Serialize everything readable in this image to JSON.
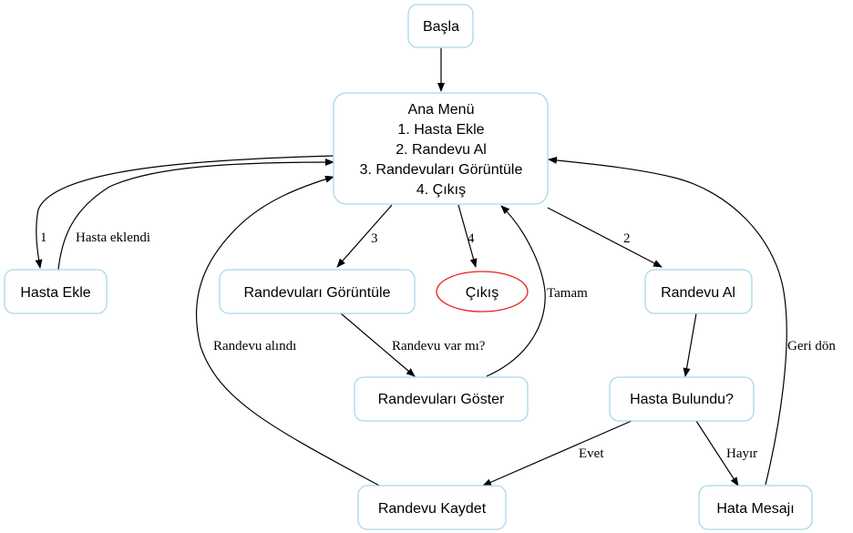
{
  "nodes": {
    "start": "Başla",
    "main_menu": {
      "lines": [
        "Ana Menü",
        "1. Hasta Ekle",
        "2. Randevu Al",
        "3. Randevuları Görüntüle",
        "4. Çıkış"
      ]
    },
    "add_patient": "Hasta Ekle",
    "view_appointments": "Randevuları Görüntüle",
    "exit": "Çıkış",
    "book_appointment": "Randevu Al",
    "show_appointments": "Randevuları Göster",
    "patient_found": "Hasta Bulundu?",
    "save_appointment": "Randevu Kaydet",
    "error_message": "Hata Mesajı"
  },
  "edges": {
    "menu_to_add": "1",
    "add_to_menu": "Hasta eklendi",
    "menu_to_view": "3",
    "menu_to_exit": "4",
    "menu_to_book": "2",
    "view_to_show": "Randevu var mı?",
    "show_to_menu": "Tamam",
    "save_to_menu": "Randevu alındı",
    "found_yes": "Evet",
    "found_no": "Hayır",
    "error_to_menu": "Geri dön"
  },
  "colors": {
    "node_border": "#a6d8e8",
    "exit_border": "#e8201c",
    "edge": "#000000"
  }
}
